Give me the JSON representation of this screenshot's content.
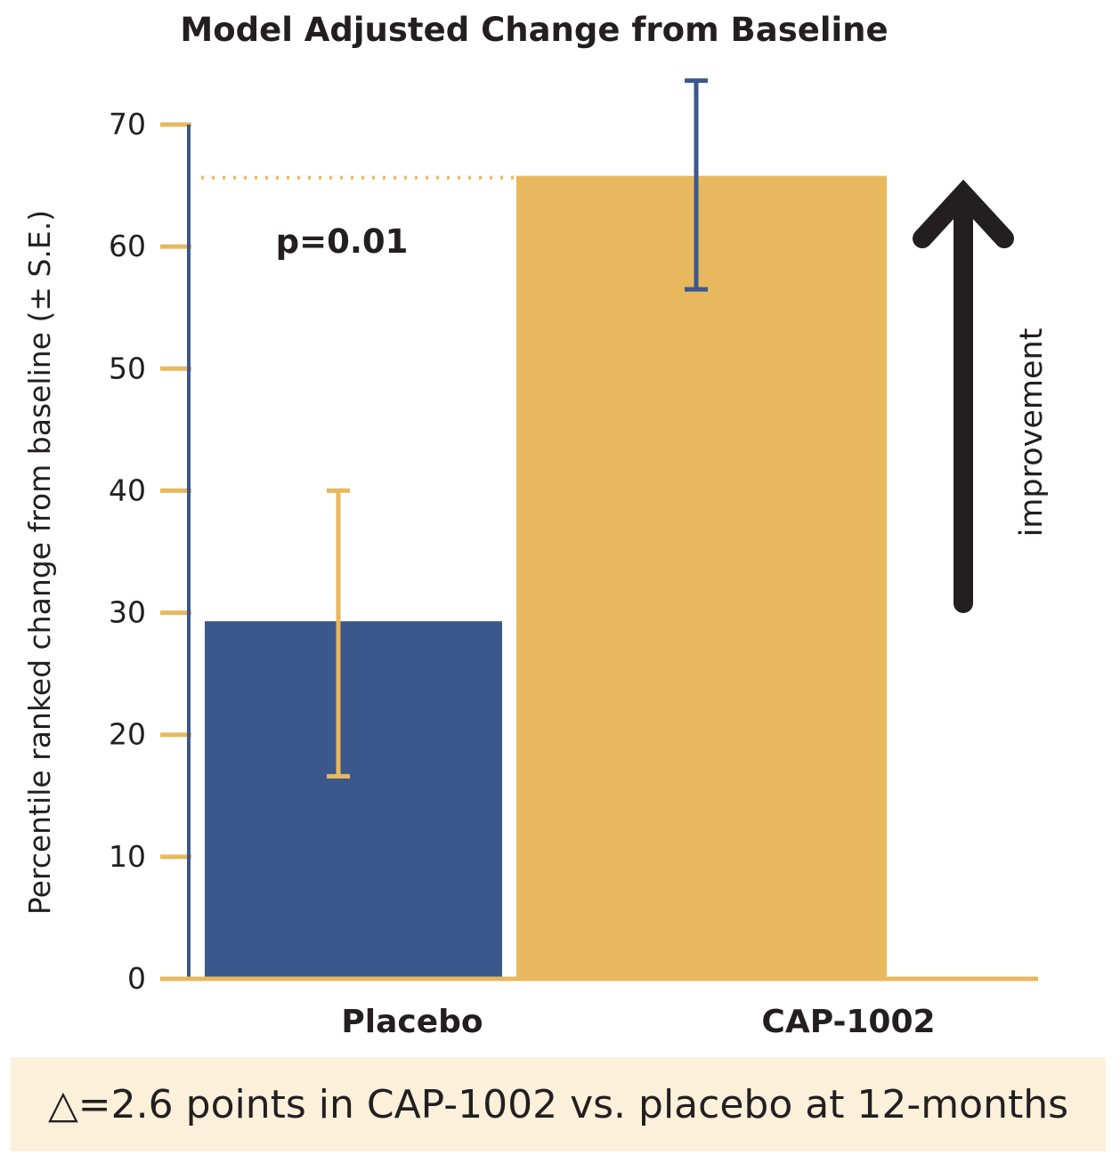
{
  "chart_data": {
    "type": "bar",
    "title": "Model Adjusted Change from Baseline",
    "ylabel": "Percentile ranked change from baseline (± S.E.)",
    "xlabel": "",
    "ylim": [
      0,
      70
    ],
    "yticks": [
      0,
      10,
      20,
      30,
      40,
      50,
      60,
      70
    ],
    "categories": [
      "Placebo",
      "CAP-1002"
    ],
    "values": [
      29.3,
      65.8
    ],
    "error_bars": [
      {
        "low": 16.6,
        "high": 40.0
      },
      {
        "low": 56.5,
        "high": 73.6
      }
    ],
    "bar_colors": [
      "#3a588c",
      "#e8b85e"
    ],
    "error_colors": [
      "#e8b85e",
      "#3a588c"
    ],
    "axis_color": "#3a588c",
    "tick_color": "#e8b85e",
    "grid": false,
    "annotations": {
      "p_value": "p=0.01",
      "arrow_label": "improvement"
    }
  },
  "footer": {
    "text": "△=2.6 points in CAP-1002 vs. placebo at 12-months"
  }
}
